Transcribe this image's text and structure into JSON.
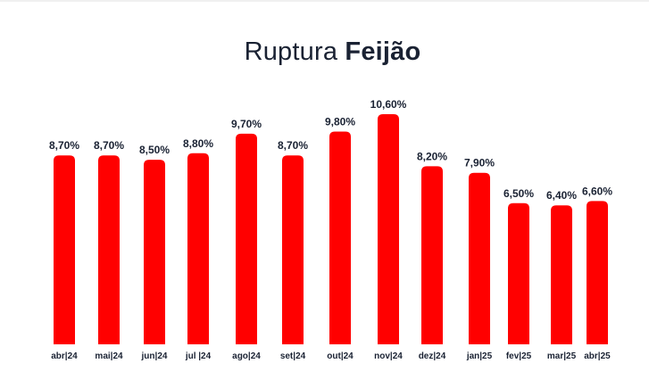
{
  "title": {
    "prefix": "Ruptura",
    "emphasis": "Feijão"
  },
  "colors": {
    "bar": "#ff0000",
    "text": "#1a2233"
  },
  "chart_data": {
    "type": "bar",
    "title": "Ruptura Feijão",
    "categories": [
      "abr|24",
      "mai|24",
      "jun|24",
      "jul |24",
      "ago|24",
      "set|24",
      "out|24",
      "nov|24",
      "dez|24",
      "jan|25",
      "fev|25",
      "mar|25",
      "abr|25"
    ],
    "values": [
      8.7,
      8.7,
      8.5,
      8.8,
      9.7,
      8.7,
      9.8,
      10.6,
      8.2,
      7.9,
      6.5,
      6.4,
      6.6
    ],
    "labels": [
      "8,70%",
      "8,70%",
      "8,50%",
      "8,80%",
      "9,70%",
      "8,70%",
      "9,80%",
      "10,60%",
      "8,20%",
      "7,90%",
      "6,50%",
      "6,40%",
      "6,60%"
    ],
    "unit": "%",
    "ylim": [
      0,
      10.6
    ],
    "grid": false,
    "legend": "none",
    "xlabel": "",
    "ylabel": ""
  }
}
